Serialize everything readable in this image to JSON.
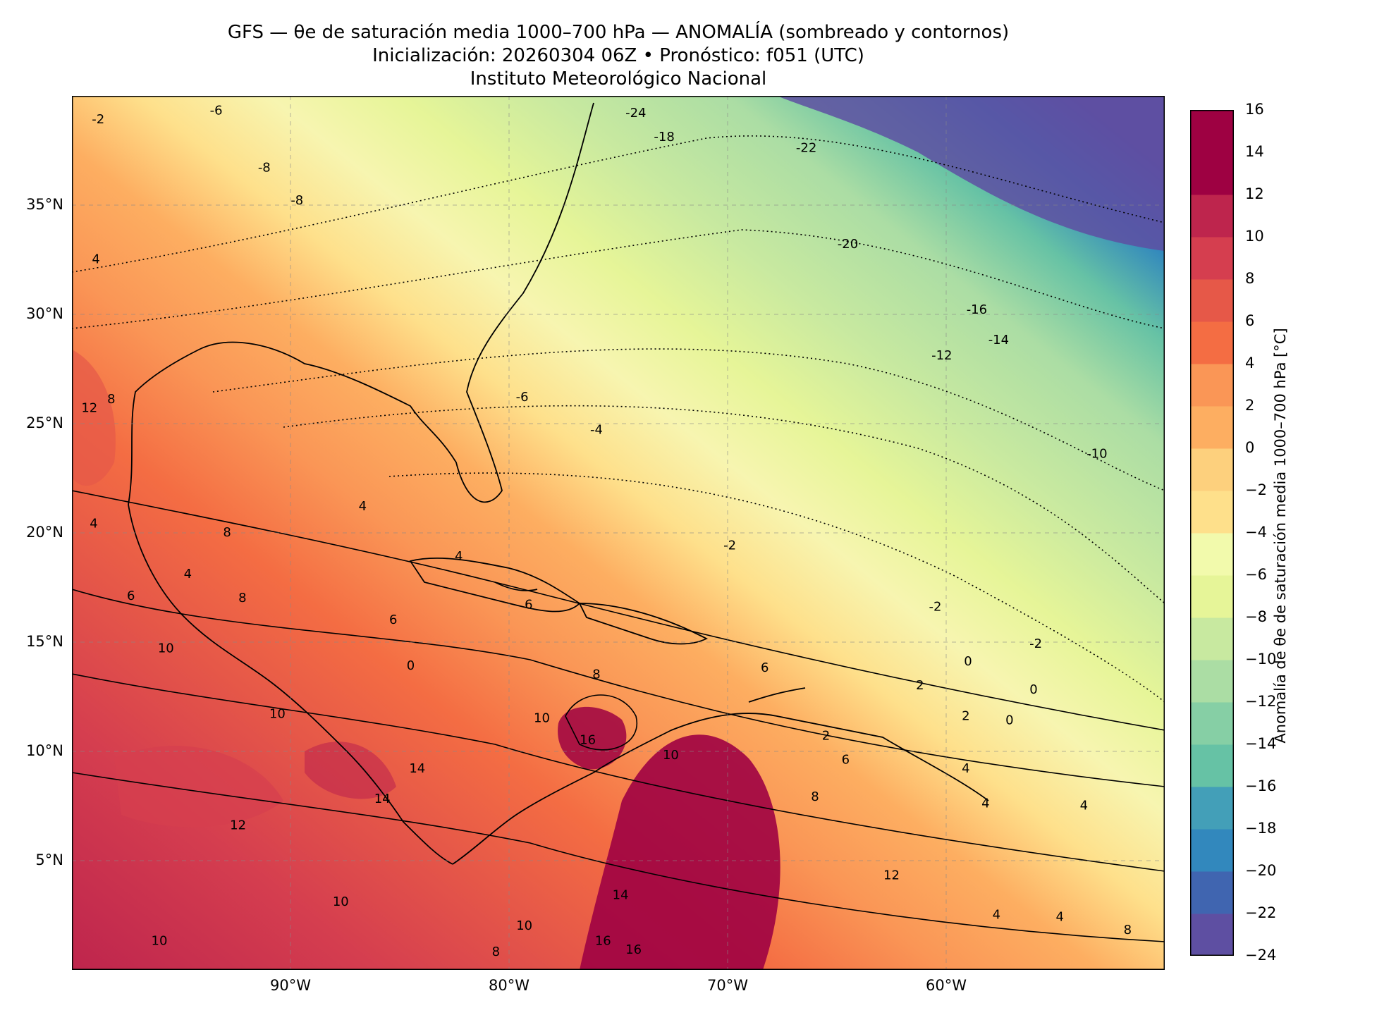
{
  "header": {
    "title": "GFS — θe de saturación media 1000–700 hPa — ANOMALÍA (sombreado y contornos)",
    "subtitle": "Inicialización: 20260304 06Z   •   Pronóstico: f051 (UTC)",
    "institution": "Instituto Meteorológico Nacional"
  },
  "map": {
    "lon_range": [
      -100,
      -50
    ],
    "lat_range": [
      0,
      40
    ],
    "lat_ticks": [
      {
        "value": 35,
        "label": "35°N"
      },
      {
        "value": 30,
        "label": "30°N"
      },
      {
        "value": 25,
        "label": "25°N"
      },
      {
        "value": 20,
        "label": "20°N"
      },
      {
        "value": 15,
        "label": "15°N"
      },
      {
        "value": 10,
        "label": "10°N"
      },
      {
        "value": 5,
        "label": "5°N"
      }
    ],
    "lon_ticks": [
      {
        "value": -90,
        "label": "90°W"
      },
      {
        "value": -80,
        "label": "80°W"
      },
      {
        "value": -70,
        "label": "70°W"
      },
      {
        "value": -60,
        "label": "60°W"
      }
    ],
    "gridlines": true,
    "contour_labels": [
      {
        "text": "-24",
        "lon": -74.2,
        "lat": 39.2
      },
      {
        "text": "-18",
        "lon": -72.9,
        "lat": 38.1
      },
      {
        "text": "-22",
        "lon": -66.4,
        "lat": 37.6
      },
      {
        "text": "-20",
        "lon": -64.5,
        "lat": 33.2
      },
      {
        "text": "-16",
        "lon": -58.6,
        "lat": 30.2
      },
      {
        "text": "-14",
        "lon": -57.6,
        "lat": 28.8
      },
      {
        "text": "-12",
        "lon": -60.2,
        "lat": 28.1
      },
      {
        "text": "-10",
        "lon": -53.1,
        "lat": 23.6
      },
      {
        "text": "-6",
        "lon": -93.4,
        "lat": 39.3
      },
      {
        "text": "-2",
        "lon": -98.8,
        "lat": 38.9
      },
      {
        "text": "-8",
        "lon": -91.2,
        "lat": 36.7
      },
      {
        "text": "-8",
        "lon": -89.7,
        "lat": 35.2
      },
      {
        "text": "-6",
        "lon": -79.4,
        "lat": 26.2
      },
      {
        "text": "-4",
        "lon": -76.0,
        "lat": 24.7
      },
      {
        "text": "-2",
        "lon": -69.9,
        "lat": 19.4
      },
      {
        "text": "-2",
        "lon": -60.5,
        "lat": 16.6
      },
      {
        "text": "-2",
        "lon": -55.9,
        "lat": 14.9
      },
      {
        "text": "4",
        "lon": -98.9,
        "lat": 32.5
      },
      {
        "text": "8",
        "lon": -98.2,
        "lat": 26.1
      },
      {
        "text": "12",
        "lon": -99.2,
        "lat": 25.7
      },
      {
        "text": "4",
        "lon": -99.0,
        "lat": 20.4
      },
      {
        "text": "4",
        "lon": -86.7,
        "lat": 21.2
      },
      {
        "text": "8",
        "lon": -92.9,
        "lat": 20.0
      },
      {
        "text": "4",
        "lon": -82.3,
        "lat": 18.9
      },
      {
        "text": "4",
        "lon": -94.7,
        "lat": 18.1
      },
      {
        "text": "8",
        "lon": -92.2,
        "lat": 17.0
      },
      {
        "text": "6",
        "lon": -97.3,
        "lat": 17.1
      },
      {
        "text": "6",
        "lon": -85.3,
        "lat": 16.0
      },
      {
        "text": "6",
        "lon": -79.1,
        "lat": 16.7
      },
      {
        "text": "10",
        "lon": -95.7,
        "lat": 14.7
      },
      {
        "text": "0",
        "lon": -84.5,
        "lat": 13.9
      },
      {
        "text": "8",
        "lon": -76.0,
        "lat": 13.5
      },
      {
        "text": "6",
        "lon": -68.3,
        "lat": 13.8
      },
      {
        "text": "10",
        "lon": -90.6,
        "lat": 11.7
      },
      {
        "text": "10",
        "lon": -78.5,
        "lat": 11.5
      },
      {
        "text": "16",
        "lon": -76.4,
        "lat": 10.5
      },
      {
        "text": "10",
        "lon": -72.6,
        "lat": 9.8
      },
      {
        "text": "14",
        "lon": -84.2,
        "lat": 9.2
      },
      {
        "text": "14",
        "lon": -85.8,
        "lat": 7.8
      },
      {
        "text": "12",
        "lon": -92.4,
        "lat": 6.6
      },
      {
        "text": "8",
        "lon": -66.0,
        "lat": 7.9
      },
      {
        "text": "6",
        "lon": -64.6,
        "lat": 9.6
      },
      {
        "text": "2",
        "lon": -65.5,
        "lat": 10.7
      },
      {
        "text": "2",
        "lon": -61.2,
        "lat": 13.0
      },
      {
        "text": "0",
        "lon": -59.0,
        "lat": 14.1
      },
      {
        "text": "0",
        "lon": -56.0,
        "lat": 12.8
      },
      {
        "text": "0",
        "lon": -57.1,
        "lat": 11.4
      },
      {
        "text": "2",
        "lon": -59.1,
        "lat": 11.6
      },
      {
        "text": "4",
        "lon": -59.1,
        "lat": 9.2
      },
      {
        "text": "4",
        "lon": -58.2,
        "lat": 7.6
      },
      {
        "text": "4",
        "lon": -53.7,
        "lat": 7.5
      },
      {
        "text": "4",
        "lon": -57.7,
        "lat": 2.5
      },
      {
        "text": "4",
        "lon": -54.8,
        "lat": 2.4
      },
      {
        "text": "12",
        "lon": -62.5,
        "lat": 4.3
      },
      {
        "text": "10",
        "lon": -87.7,
        "lat": 3.1
      },
      {
        "text": "10",
        "lon": -96.0,
        "lat": 1.3
      },
      {
        "text": "10",
        "lon": -79.3,
        "lat": 2.0
      },
      {
        "text": "14",
        "lon": -74.9,
        "lat": 3.4
      },
      {
        "text": "16",
        "lon": -75.7,
        "lat": 1.3
      },
      {
        "text": "16",
        "lon": -74.3,
        "lat": 0.9
      },
      {
        "text": "8",
        "lon": -80.6,
        "lat": 0.8
      },
      {
        "text": "8",
        "lon": -51.7,
        "lat": 1.8
      }
    ]
  },
  "colorbar": {
    "title": "Anomalía de θe de saturación media 1000–700 hPa [°C]",
    "min": -24,
    "max": 16,
    "step": 2,
    "tick_labels": [
      "16",
      "14",
      "12",
      "10",
      "8",
      "6",
      "4",
      "2",
      "0",
      "−2",
      "−4",
      "−6",
      "−8",
      "−10",
      "−12",
      "−14",
      "−16",
      "−18",
      "−20",
      "−22",
      "−24"
    ],
    "colors": [
      "#5e4fa2",
      "#4065b0",
      "#3288bd",
      "#439fb8",
      "#66c2a5",
      "#86cfa5",
      "#abdda4",
      "#c8e9a0",
      "#e6f598",
      "#f2faac",
      "#fee08b",
      "#fdd07d",
      "#fdae61",
      "#fa9656",
      "#f46d43",
      "#e65848",
      "#d53e4f",
      "#be254d",
      "#9e0142",
      "#9e0142"
    ]
  }
}
